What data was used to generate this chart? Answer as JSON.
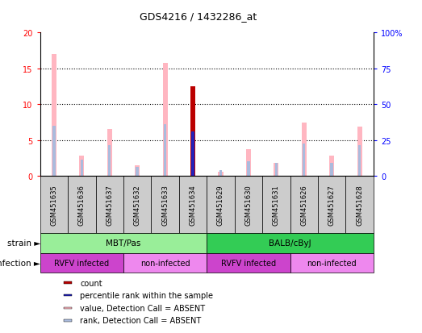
{
  "title": "GDS4216 / 1432286_at",
  "samples": [
    "GSM451635",
    "GSM451636",
    "GSM451637",
    "GSM451632",
    "GSM451633",
    "GSM451634",
    "GSM451629",
    "GSM451630",
    "GSM451631",
    "GSM451626",
    "GSM451627",
    "GSM451628"
  ],
  "value_pink": [
    17.0,
    2.8,
    6.5,
    1.5,
    15.8,
    0.0,
    0.6,
    3.7,
    1.8,
    7.5,
    2.8,
    6.9
  ],
  "rank_blue": [
    35.0,
    11.5,
    21.5,
    6.5,
    36.0,
    31.5,
    4.0,
    10.0,
    9.0,
    22.5,
    9.0,
    21.5
  ],
  "count_red": [
    0.0,
    0.0,
    0.0,
    0.0,
    0.0,
    12.5,
    0.0,
    0.0,
    0.0,
    0.0,
    0.0,
    0.0
  ],
  "percentile_blue": [
    0.0,
    0.0,
    0.0,
    0.0,
    0.0,
    31.0,
    0.0,
    0.0,
    0.0,
    0.0,
    0.0,
    0.0
  ],
  "strain_groups": [
    {
      "label": "MBT/Pas",
      "start": 0,
      "end": 6,
      "color": "#99EE99"
    },
    {
      "label": "BALB/cByJ",
      "start": 6,
      "end": 12,
      "color": "#33CC55"
    }
  ],
  "infection_groups": [
    {
      "label": "RVFV infected",
      "start": 0,
      "end": 3,
      "color": "#CC44CC"
    },
    {
      "label": "non-infected",
      "start": 3,
      "end": 6,
      "color": "#EE88EE"
    },
    {
      "label": "RVFV infected",
      "start": 6,
      "end": 9,
      "color": "#CC44CC"
    },
    {
      "label": "non-infected",
      "start": 9,
      "end": 12,
      "color": "#EE88EE"
    }
  ],
  "ylim_left": [
    0,
    20
  ],
  "ylim_right": [
    0,
    100
  ],
  "yticks_left": [
    0,
    5,
    10,
    15,
    20
  ],
  "yticks_right": [
    0,
    25,
    50,
    75,
    100
  ],
  "color_pink": "#FFB6C1",
  "color_blue_rank": "#AABBDD",
  "color_red": "#BB0000",
  "color_blue_dot": "#2222BB",
  "strain_label": "strain",
  "infection_label": "infection"
}
